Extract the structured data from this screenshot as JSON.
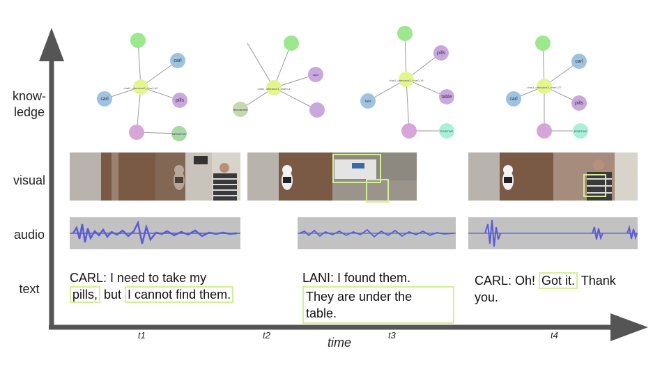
{
  "axis": {
    "time_label": "time",
    "ticks": [
      "t1",
      "t2",
      "t3",
      "t4"
    ]
  },
  "rows": {
    "knowledge": [
      "know-",
      "ledge"
    ],
    "visual": "visual",
    "audio": "audio",
    "text": "text"
  },
  "utterances": {
    "u1": {
      "speaker_line": "CARL: I need to take my",
      "hl1": "pills,",
      "mid": " but ",
      "hl2": "I cannot find them."
    },
    "u2": {
      "line1": "LANI: I found them.",
      "hl_line1": "They are under the",
      "hl_line2": "table."
    },
    "u3": {
      "pre": "CARL: Oh! ",
      "hl": "Got it.",
      "post": " Thank",
      "line2": "you."
    }
  },
  "graphs": {
    "g1": {
      "center": "chat1_utterance0_char0-40",
      "nodes": [
        "carl",
        "pills",
        "carl",
        "NEGATIVE"
      ]
    },
    "g2": {
      "center": "chat1_utterance1_char0-3",
      "nodes": [
        "table",
        "first camera"
      ]
    },
    "g3": {
      "center": "chat1_utterance2_char0-18",
      "nodes": [
        "pills",
        "table",
        "lani",
        "POSITIVE"
      ]
    },
    "g4": {
      "center": "chat1_utterance3_char0-22",
      "nodes": [
        "carl",
        "carl",
        "pills",
        "POSITIVE"
      ]
    }
  },
  "colors": {
    "axis": "#555555",
    "highlight": "#d4ef96",
    "wave": "#5a5bd6",
    "node_green": "#9be88e",
    "node_blue": "#9ec3e0",
    "node_purple": "#c9a8e0",
    "node_center": "#e3f58f",
    "node_mint": "#a8f0d8",
    "node_sage": "#c6d8b0"
  }
}
